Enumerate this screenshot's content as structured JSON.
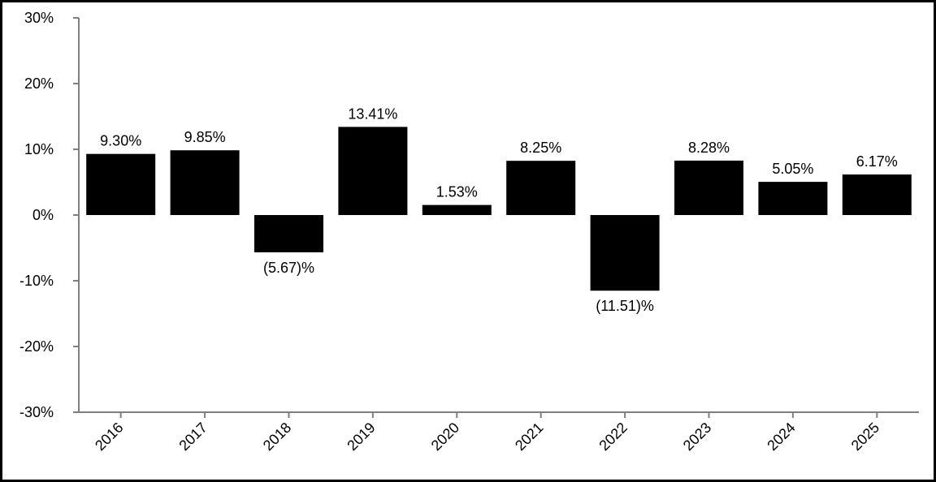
{
  "chart_data": {
    "type": "bar",
    "title": "",
    "xlabel": "",
    "ylabel": "",
    "categories": [
      "2016",
      "2017",
      "2018",
      "2019",
      "2020",
      "2021",
      "2022",
      "2023",
      "2024",
      "2025"
    ],
    "values": [
      9.3,
      9.85,
      -5.67,
      13.41,
      1.53,
      8.25,
      -11.51,
      8.28,
      5.05,
      6.17
    ],
    "value_labels": [
      "9.30%",
      "9.85%",
      "(5.67)%",
      "13.41%",
      "1.53%",
      "8.25%",
      "(11.51)%",
      "8.28%",
      "5.05%",
      "6.17%"
    ],
    "ylim": [
      -30,
      30
    ],
    "yticks": [
      30,
      20,
      10,
      0,
      -10,
      -20,
      -30
    ],
    "ytick_labels": [
      "30%",
      "20%",
      "10%",
      "0%",
      "-10%",
      "-20%",
      "-30%"
    ],
    "grid": false,
    "legend": "none",
    "bar_color": "#000000",
    "axis_color": "#7f7f7f"
  }
}
